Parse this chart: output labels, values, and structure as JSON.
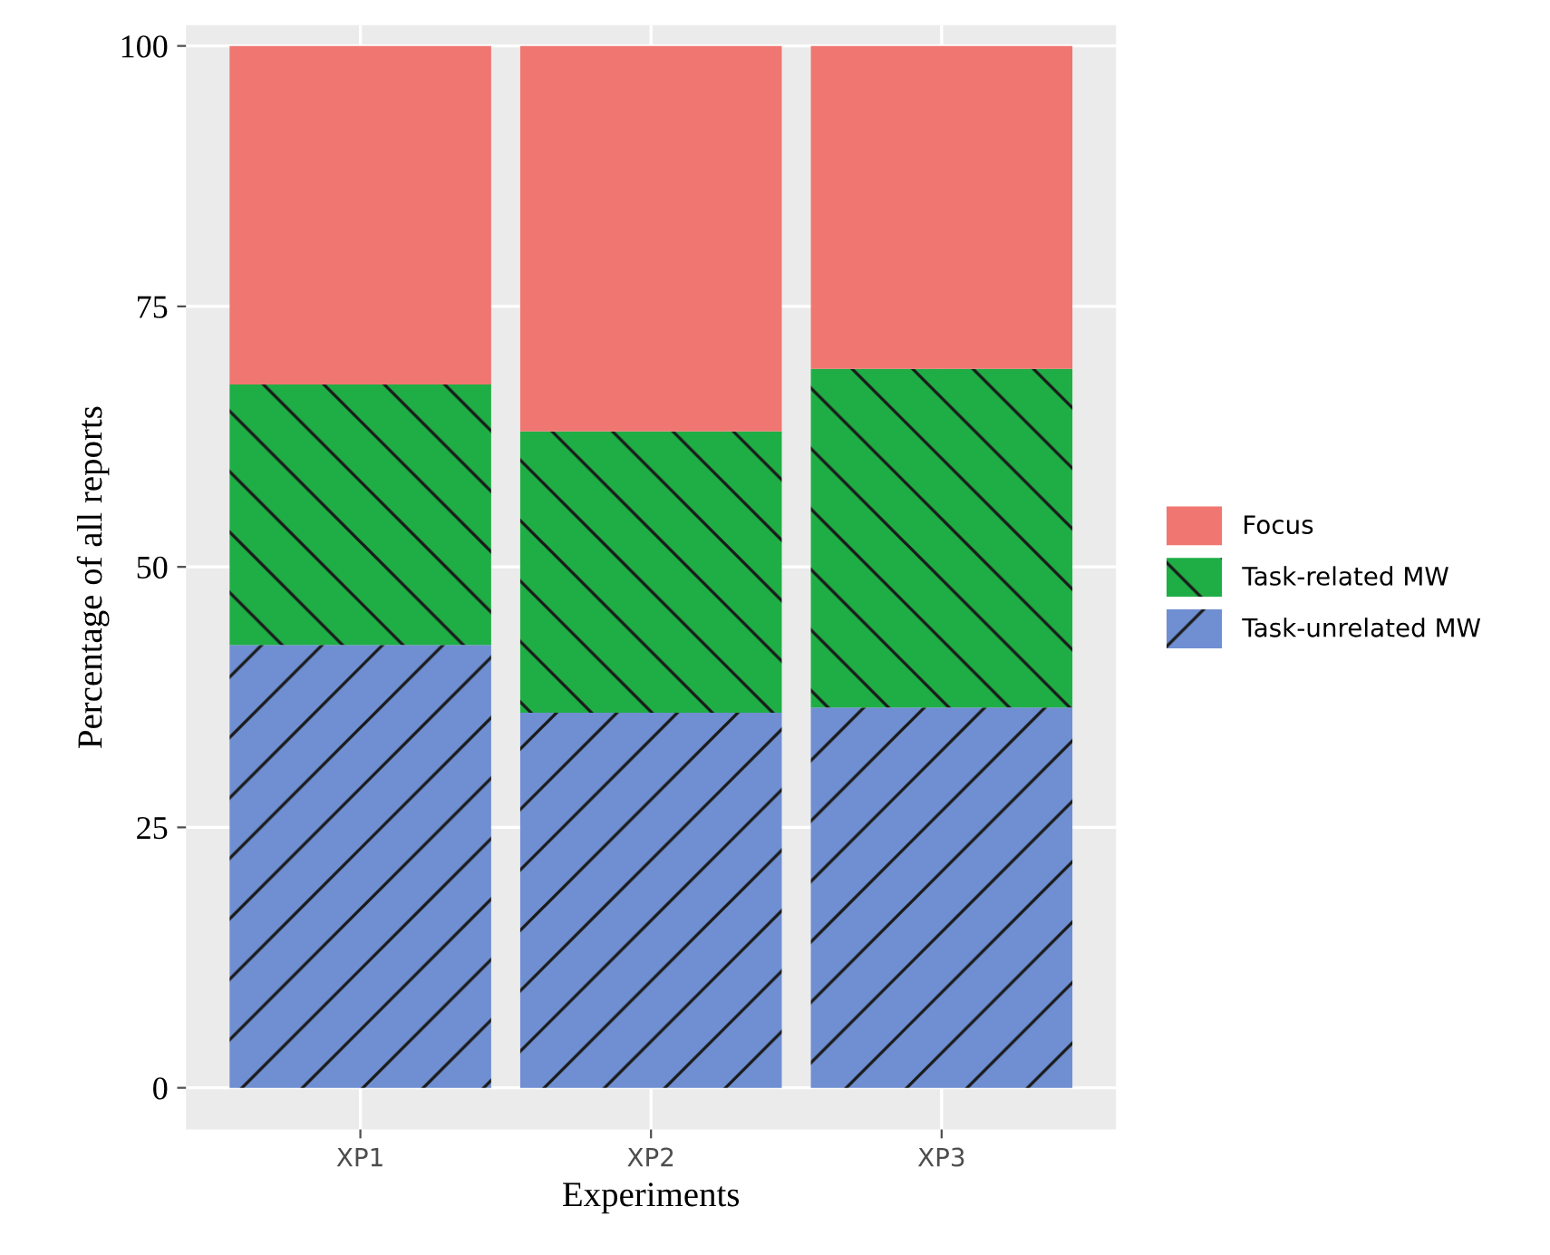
{
  "chart_data": {
    "type": "bar",
    "stacked": true,
    "xlabel": "Experiments",
    "ylabel": "Percentage of all reports",
    "categories": [
      "XP1",
      "XP2",
      "XP3"
    ],
    "series": [
      {
        "name": "Task-unrelated MW",
        "color": "#6f8fd2",
        "values": [
          42.5,
          36,
          36.5
        ]
      },
      {
        "name": "Task-related MW",
        "color": "#1fae45",
        "values": [
          25,
          27,
          32.5
        ]
      },
      {
        "name": "Focus",
        "color": "#f07671",
        "values": [
          32.5,
          37,
          31
        ]
      }
    ],
    "ylim": [
      -4,
      102
    ],
    "yticks": [
      0,
      25,
      50,
      75,
      100
    ],
    "grid": true,
    "legend": "right"
  }
}
